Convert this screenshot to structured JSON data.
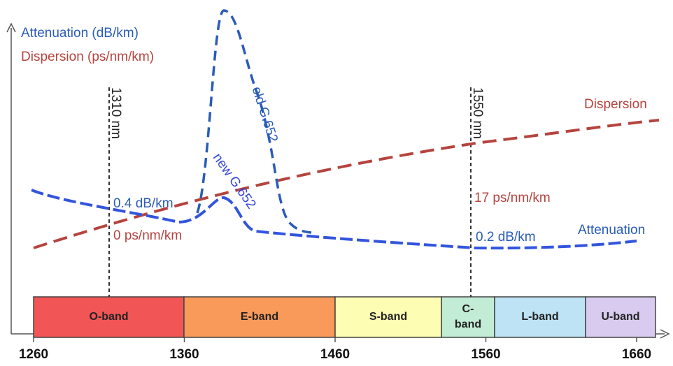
{
  "legend": {
    "attenuation": "Attenuation (dB/km)",
    "dispersion": "Dispersion (ps/nm/km)"
  },
  "curve_labels": {
    "dispersion": "Dispersion",
    "attenuation": "Attenuation",
    "old": "old G.652",
    "new": "new G.652"
  },
  "annotations": {
    "att_1310": "0.4 dB/km",
    "disp_1310": "0 ps/nm/km",
    "disp_1550": "17 ps/nm/km",
    "att_1550": "0.2 dB/km"
  },
  "markers": [
    "1310 nm",
    "1550 nm"
  ],
  "bands": [
    {
      "lines": [
        "O-band"
      ]
    },
    {
      "lines": [
        "E-band"
      ]
    },
    {
      "lines": [
        "S-band"
      ]
    },
    {
      "lines": [
        "C-",
        "band"
      ]
    },
    {
      "lines": [
        "L-band"
      ]
    },
    {
      "lines": [
        "U-band"
      ]
    }
  ],
  "xticks": [
    1260,
    1360,
    1460,
    1560,
    1660
  ]
}
